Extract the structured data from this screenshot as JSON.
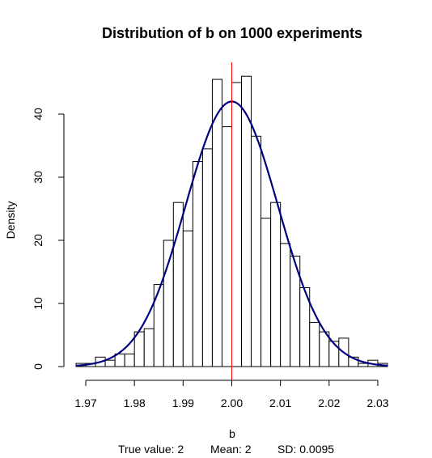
{
  "chart_data": {
    "type": "bar",
    "subtype": "histogram",
    "title": "Distribution of b on 1000 experiments",
    "xlabel": "b",
    "ylabel": "Density",
    "xlim": [
      1.968,
      2.032
    ],
    "ylim": [
      0,
      46
    ],
    "x_ticks": [
      "1.97",
      "1.98",
      "1.99",
      "2.00",
      "2.01",
      "2.02",
      "2.03"
    ],
    "y_ticks": [
      "0",
      "10",
      "20",
      "30",
      "40"
    ],
    "bin_edges": [
      1.968,
      1.97,
      1.972,
      1.974,
      1.976,
      1.978,
      1.98,
      1.982,
      1.984,
      1.986,
      1.988,
      1.99,
      1.992,
      1.994,
      1.996,
      1.998,
      2.0,
      2.002,
      2.004,
      2.006,
      2.008,
      2.01,
      2.012,
      2.014,
      2.016,
      2.018,
      2.02,
      2.022,
      2.024,
      2.026,
      2.028,
      2.03,
      2.032
    ],
    "density": [
      0.5,
      0.5,
      1.5,
      1.0,
      2.0,
      2.0,
      5.5,
      6.0,
      13.0,
      20.0,
      26.0,
      21.5,
      32.5,
      34.5,
      45.5,
      38.0,
      45.0,
      46.0,
      36.5,
      23.5,
      26.0,
      19.5,
      17.5,
      12.5,
      7.0,
      5.5,
      4.0,
      4.5,
      1.5,
      0.5,
      1.0,
      0.5
    ],
    "overlay_curve": {
      "type": "normal_density",
      "mean": 2.0,
      "sd": 0.0095,
      "color": "#000080"
    },
    "reference_line": {
      "x": 2.0,
      "color": "#ff0000"
    },
    "bar_fill": "#ffffff",
    "bar_stroke": "#000000"
  },
  "caption": {
    "true_value": "True value: 2",
    "mean": "Mean:  2",
    "sd": "SD:  0.0095"
  }
}
